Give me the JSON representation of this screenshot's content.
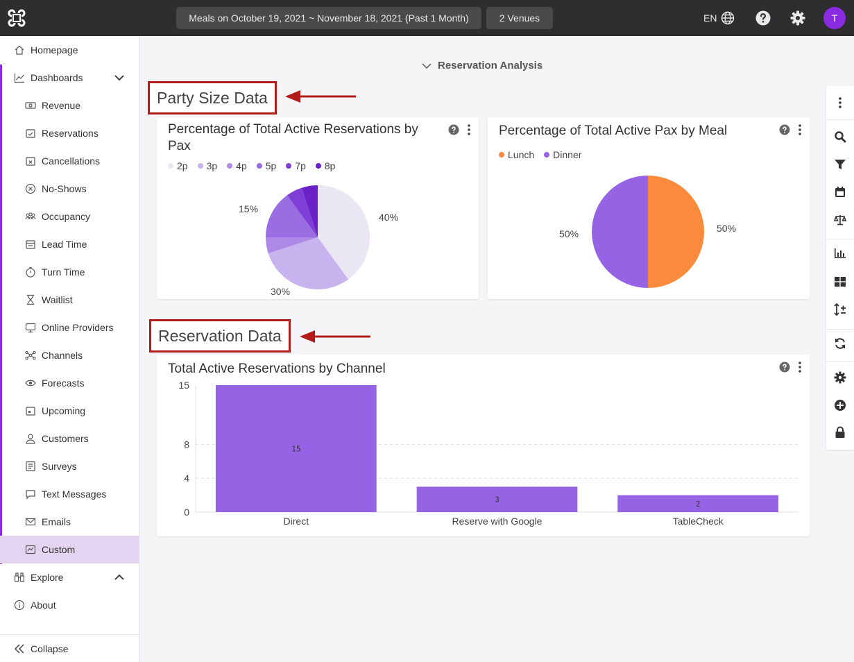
{
  "topbar": {
    "date_range": "Meals on October 19, 2021 ~ November 18, 2021 (Past 1 Month)",
    "venues": "2 Venues",
    "language": "EN",
    "avatar_initial": "T"
  },
  "sidebar": {
    "homepage": "Homepage",
    "dashboards": "Dashboards",
    "items": [
      "Revenue",
      "Reservations",
      "Cancellations",
      "No-Shows",
      "Occupancy",
      "Lead Time",
      "Turn Time",
      "Waitlist",
      "Online Providers",
      "Channels",
      "Forecasts",
      "Upcoming",
      "Customers",
      "Surveys",
      "Text Messages",
      "Emails",
      "Custom"
    ],
    "explore": "Explore",
    "about": "About",
    "collapse": "Collapse"
  },
  "main": {
    "section_title": "Reservation Analysis",
    "party_size_label": "Party Size Data",
    "reservation_label": "Reservation Data"
  },
  "charts": {
    "pax_pie": {
      "title_line1": "Percentage of Total Active Reservations by",
      "title_line2": "Pax",
      "legend": [
        "2p",
        "3p",
        "4p",
        "5p",
        "7p",
        "8p"
      ],
      "labels": {
        "a": "40%",
        "b": "30%",
        "c": "15%"
      }
    },
    "meal_pie": {
      "title": "Percentage of Total Active Pax by Meal",
      "legend": [
        "Lunch",
        "Dinner"
      ],
      "labels": {
        "lunch": "50%",
        "dinner": "50%"
      }
    },
    "channel_bar": {
      "title": "Total Active Reservations by Channel"
    }
  },
  "chart_data": [
    {
      "type": "pie",
      "title": "Percentage of Total Active Reservations by Pax",
      "categories": [
        "2p",
        "3p",
        "4p",
        "5p",
        "7p",
        "8p"
      ],
      "values": [
        40,
        30,
        5,
        15,
        5,
        5
      ],
      "colors": [
        "#ebe6f4",
        "#c7b4ee",
        "#ad8ae8",
        "#9a6ee2",
        "#7f3fd6",
        "#6a22c8"
      ],
      "legend": "top-left"
    },
    {
      "type": "pie",
      "title": "Percentage of Total Active Pax by Meal",
      "categories": [
        "Lunch",
        "Dinner"
      ],
      "values": [
        50,
        50
      ],
      "colors": [
        "#fb8b3c",
        "#9563e3"
      ],
      "legend": "top-left"
    },
    {
      "type": "bar",
      "title": "Total Active Reservations by Channel",
      "categories": [
        "Direct",
        "Reserve with Google",
        "TableCheck"
      ],
      "values": [
        15,
        3,
        2
      ],
      "yticks": [
        0,
        4,
        8,
        15
      ],
      "ylim": [
        0,
        15
      ],
      "color": "#9563e3",
      "grid": true
    }
  ]
}
